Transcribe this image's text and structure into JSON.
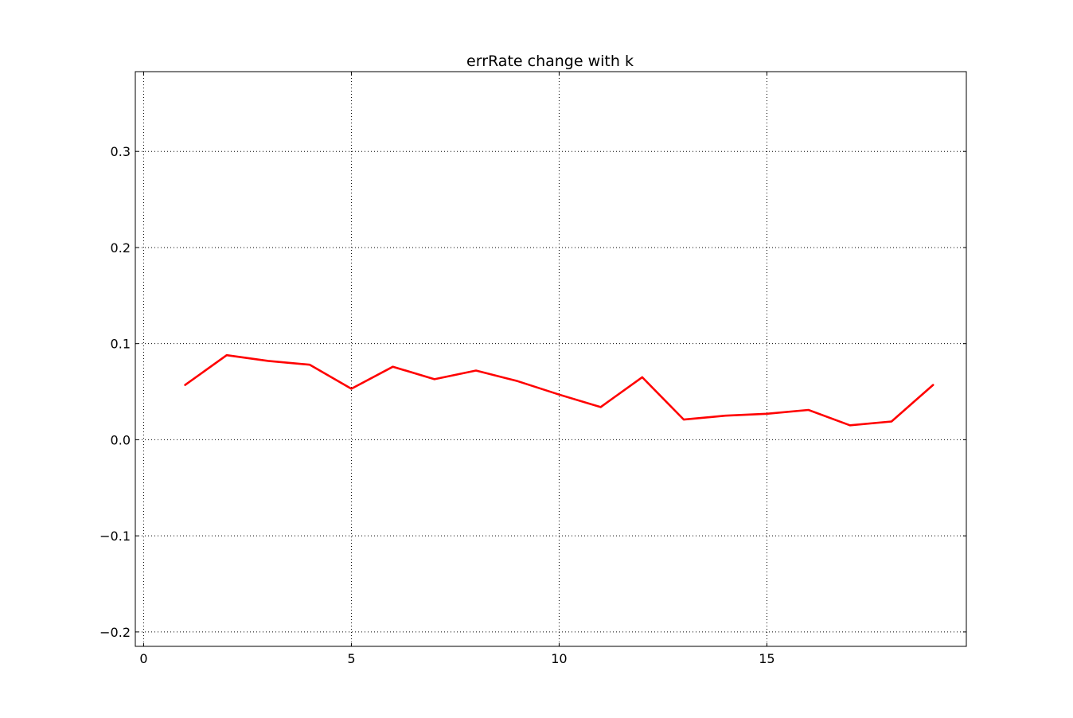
{
  "chart_data": {
    "type": "line",
    "title": "errRate change with k",
    "xlabel": "",
    "ylabel": "",
    "xlim": [
      -0.2,
      19.8
    ],
    "ylim": [
      -0.215,
      0.383
    ],
    "x_ticks": [
      0,
      5,
      10,
      15
    ],
    "x_tick_labels": [
      "0",
      "5",
      "10",
      "15"
    ],
    "y_ticks": [
      -0.2,
      -0.1,
      0.0,
      0.1,
      0.2,
      0.3
    ],
    "y_tick_labels": [
      "−0.2",
      "−0.1",
      "0.0",
      "0.1",
      "0.2",
      "0.3"
    ],
    "grid": true,
    "legend": "none",
    "series": [
      {
        "color": "#ff0000",
        "x": [
          1,
          2,
          3,
          4,
          5,
          6,
          7,
          8,
          9,
          10,
          11,
          12,
          13,
          14,
          15,
          16,
          17,
          18,
          19
        ],
        "y": [
          0.057,
          0.088,
          0.082,
          0.078,
          0.053,
          0.076,
          0.063,
          0.072,
          0.061,
          0.047,
          0.034,
          0.065,
          0.021,
          0.025,
          0.027,
          0.031,
          0.015,
          0.019,
          0.057
        ]
      }
    ]
  }
}
